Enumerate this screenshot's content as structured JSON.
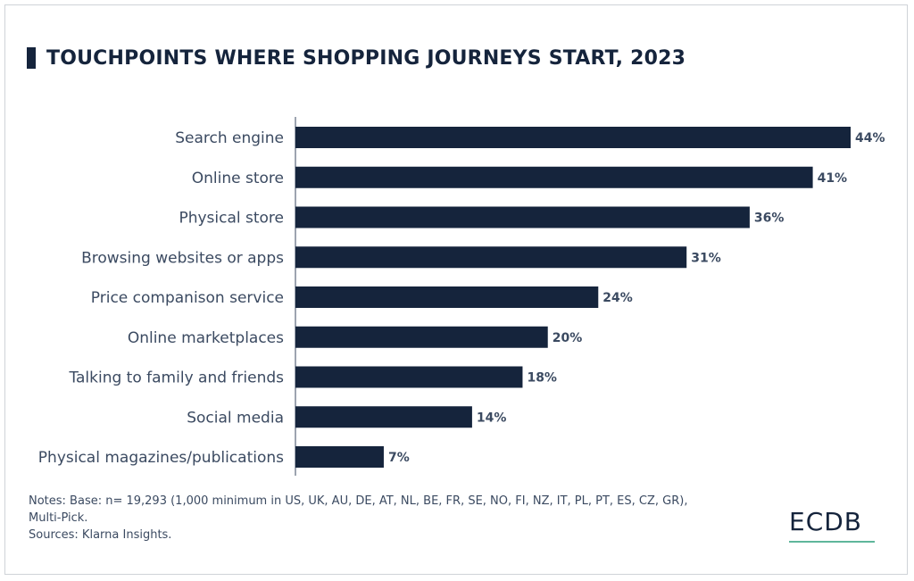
{
  "title": "TOUCHPOINTS WHERE SHOPPING JOURNEYS START, 2023",
  "colors": {
    "bar": "#15243c",
    "label": "#3b4a61",
    "axis": "#3b4a61",
    "logo_accent": "#5fb69b"
  },
  "chart_data": {
    "type": "bar",
    "orientation": "horizontal",
    "title": "TOUCHPOINTS WHERE SHOPPING JOURNEYS START, 2023",
    "categories": [
      "Search engine",
      "Online store",
      "Physical store",
      "Browsing websites or apps",
      "Price companison service",
      "Online marketplaces",
      "Talking to family and friends",
      "Social media",
      "Physical magazines/publications"
    ],
    "values": [
      44,
      41,
      36,
      31,
      24,
      20,
      18,
      14,
      7
    ],
    "value_labels": [
      "44%",
      "41%",
      "36%",
      "31%",
      "24%",
      "20%",
      "18%",
      "14%",
      "7%"
    ],
    "unit": "%",
    "xlim": [
      0,
      44
    ],
    "grid": false,
    "legend": "none"
  },
  "notes": {
    "line1": "Notes: Base: n= 19,293 (1,000 minimum in US, UK, AU, DE, AT, NL, BE, FR, SE, NO, FI, NZ, IT, PL, PT, ES, CZ, GR),",
    "line2": "Multi-Pick.",
    "line3": "Sources: Klarna Insights."
  },
  "logo": {
    "text": "ECDB"
  }
}
